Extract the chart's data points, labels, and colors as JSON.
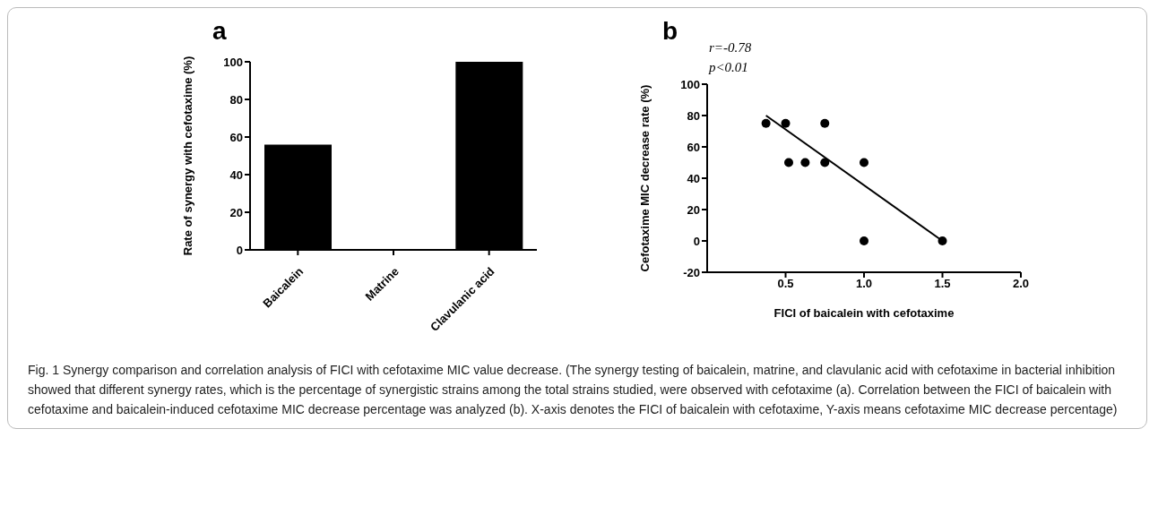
{
  "chart_data": [
    {
      "type": "bar",
      "title": "a",
      "ylabel": "Rate of synergy with cefotaxime (%)",
      "categories": [
        "Baicalein",
        "Matrine",
        "Clavulanic acid"
      ],
      "values": [
        56,
        0,
        100
      ],
      "color": "#000000",
      "ylim": [
        0,
        100
      ],
      "yticks": [
        0,
        20,
        40,
        60,
        80,
        100
      ],
      "grid": false,
      "legend": false,
      "annotations": [
        "Fig. 1 Synergy comparison and correlation analysis of FICI with cefotaxime MIC value decrease. (The synergy testing of baicalein, matrine, and clavulanic acid with cefotaxime in bacterial inhibition showed that different synergy rates, which is the percentage of synergistic strains among the total strains studied, were observed with cefotaxime (a). Correlation between the FICI of baicalein with cefotaxime and baicalein-induced cefotaxime MIC decrease percentage was analyzed (b). X-axis denotes the FICI of baicalein with cefotaxime, Y-axis means cefotaxime MIC decrease percentage)"
      ]
    },
    {
      "type": "scatter",
      "title": "b",
      "xlabel": "FICI of baicalein with cefotaxime",
      "ylabel": "Cefotaxime MIC decrease rate (%)",
      "xlim": [
        0,
        2
      ],
      "xticks": [
        {
          "value": 0.5,
          "label": "0.5"
        },
        {
          "value": 1,
          "label": "1.0"
        },
        {
          "value": 1.5,
          "label": "1.5"
        },
        {
          "value": 2,
          "label": "2.0"
        }
      ],
      "ylim": [
        -20,
        100
      ],
      "yticks": [
        -20,
        0,
        20,
        40,
        60,
        80,
        100
      ],
      "grid": false,
      "legend": false,
      "annotations": [
        "r=-0.78",
        "p<0.01"
      ],
      "series": [
        {
          "type": "scatter",
          "color": "#000000",
          "marker": "circle",
          "x": [
            0.375,
            0.5,
            0.75,
            0.52,
            0.625,
            0.75,
            1.0,
            1.0,
            1.5
          ],
          "values": [
            75,
            75,
            75,
            50,
            50,
            50,
            50,
            0,
            0
          ]
        },
        {
          "type": "line",
          "color": "#000000",
          "marker": "none",
          "x": [
            0.375,
            1.5
          ],
          "values": [
            80,
            0
          ]
        }
      ]
    }
  ]
}
